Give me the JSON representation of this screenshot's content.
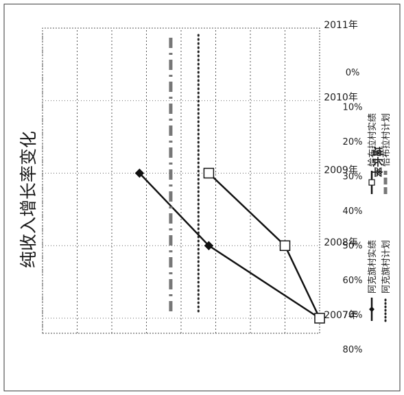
{
  "chart_data": {
    "type": "line",
    "title": "纯收入增长率变化",
    "ylabel": "增长率",
    "xlabel": "",
    "categories": [
      "2007年",
      "2008年",
      "2009年",
      "2010年",
      "2011年"
    ],
    "y_ticks": [
      "0%",
      "10%",
      "20%",
      "30%",
      "40%",
      "50%",
      "60%",
      "70%",
      "80%"
    ],
    "ylim": [
      0,
      80
    ],
    "grid": true,
    "legend_position": "right",
    "series": [
      {
        "name": "阿克旗村实绩",
        "style": "solid",
        "marker": "diamond",
        "color": "#111111",
        "values": [
          0,
          32,
          52,
          null,
          null
        ]
      },
      {
        "name": "恰布拉村实绩",
        "style": "solid",
        "marker": "square",
        "color": "#111111",
        "values": [
          0,
          10,
          32,
          null,
          null
        ]
      },
      {
        "name": "阿克旗村计划",
        "style": "dotted",
        "marker": "none",
        "color": "#222222",
        "values": [
          35,
          35,
          35,
          35,
          35
        ]
      },
      {
        "name": "恰布拉村计划",
        "style": "dash-dot",
        "marker": "none",
        "color": "#777777",
        "values": [
          43,
          43,
          43,
          43,
          43
        ]
      }
    ]
  }
}
